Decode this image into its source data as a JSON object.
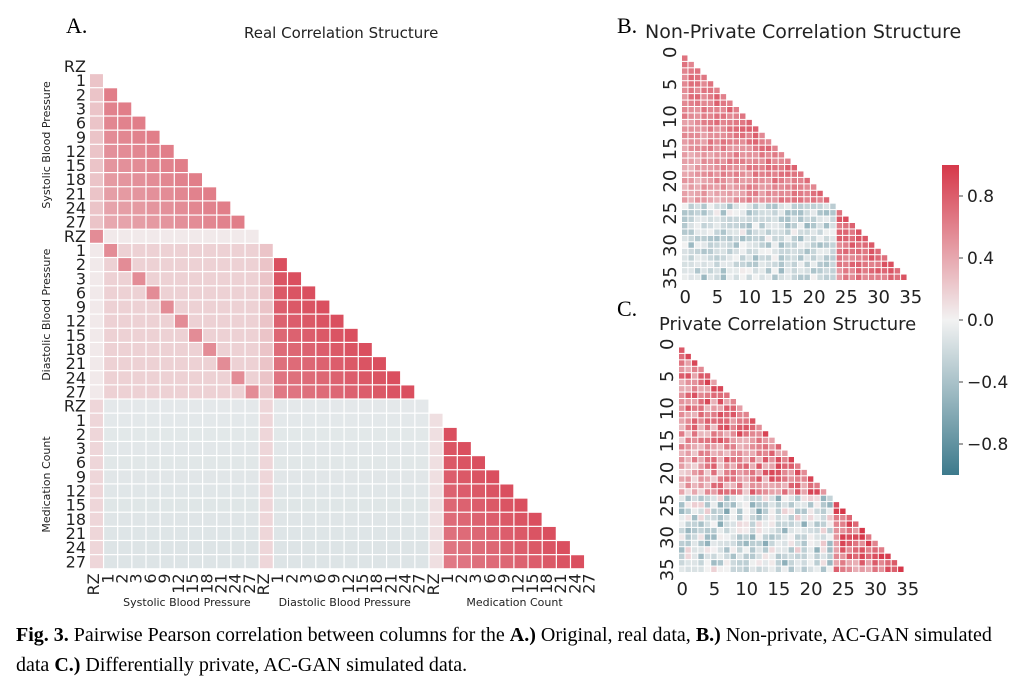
{
  "figure": {
    "panels": {
      "a": {
        "letter": "A.",
        "title": "Real Correlation Structure"
      },
      "b": {
        "letter": "B.",
        "title": "Non-Private Correlation Structure"
      },
      "c": {
        "letter": "C.",
        "title": "Private Correlation Structure"
      }
    },
    "caption": {
      "fig_label": "Fig. 3.",
      "text_1": " Pairwise Pearson correlation between columns for the ",
      "a_label": "A.)",
      "text_2": " Original, real data, ",
      "b_label": "B.)",
      "text_3": " Non-private, AC-GAN simulated data ",
      "c_label": "C.)",
      "text_4": " Differentially private, AC-GAN simulated data."
    }
  },
  "chart_data": [
    {
      "type": "heatmap",
      "title": "Real Correlation Structure",
      "mask": "lower-triangle",
      "tick_labels": [
        "RZ",
        "1",
        "2",
        "3",
        "6",
        "9",
        "12",
        "15",
        "18",
        "21",
        "24",
        "27",
        "RZ",
        "1",
        "2",
        "3",
        "6",
        "9",
        "12",
        "15",
        "18",
        "21",
        "24",
        "27",
        "RZ",
        "1",
        "2",
        "3",
        "6",
        "9",
        "12",
        "15",
        "18",
        "21",
        "24",
        "27"
      ],
      "groups": [
        "Systolic Blood Pressure",
        "Diastolic Blood Pressure",
        "Medication Count"
      ],
      "group_size": 12,
      "value_range": [
        -1,
        1
      ]
    },
    {
      "type": "heatmap",
      "title": "Non-Private Correlation Structure",
      "mask": "lower-triangle",
      "size": 36,
      "ticks": [
        0,
        5,
        10,
        15,
        20,
        25,
        30,
        35
      ],
      "value_range": [
        -1,
        1
      ]
    },
    {
      "type": "heatmap",
      "title": "Private Correlation Structure",
      "mask": "lower-triangle",
      "size": 36,
      "ticks": [
        0,
        5,
        10,
        15,
        20,
        25,
        30,
        35
      ],
      "value_range": [
        -1,
        1
      ]
    },
    {
      "type": "colorbar",
      "range": [
        -1,
        1
      ],
      "ticks": [
        0.8,
        0.4,
        0.0,
        -0.4,
        -0.8
      ],
      "tick_labels": [
        "0.8",
        "0.4",
        "0.0",
        "−0.4",
        "−0.8"
      ],
      "colors": {
        "negative": "#3d7a8c",
        "neutral": "#f2f2f2",
        "positive": "#d6384a"
      }
    }
  ]
}
